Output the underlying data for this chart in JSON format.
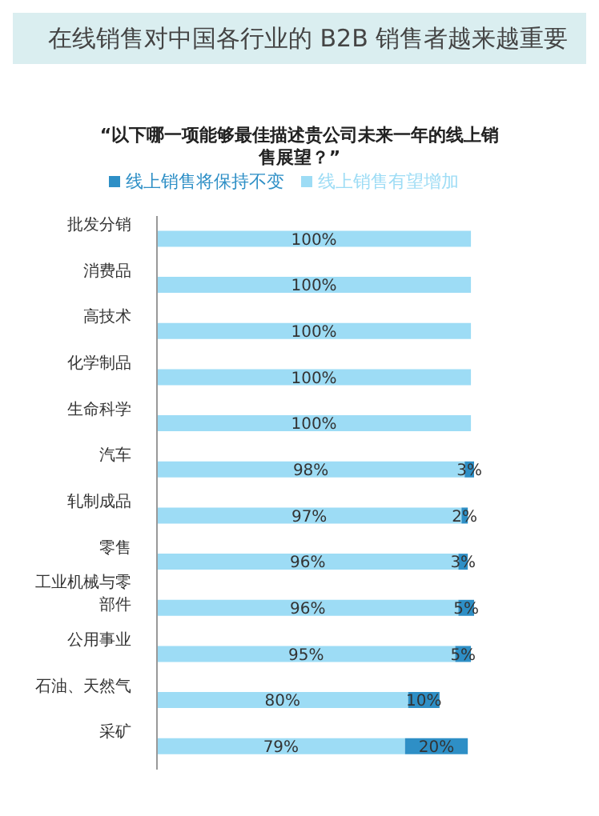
{
  "chart_data": {
    "type": "bar",
    "orientation": "horizontal",
    "stacked": true,
    "title": "在线销售对中国各行业的 B2B 销售者越来越重要",
    "subtitle": "“以下哪一项能够最佳描述贵公司未来一年的线上销售展望？”",
    "legend": "top",
    "grid": false,
    "tick_labels": "y",
    "categories": [
      "批发分销",
      "消费品",
      "高技术",
      "化学制品",
      "生命科学",
      "汽车",
      "轧制成品",
      "零售",
      "工业机械与零部件",
      "公用事业",
      "石油、天然气",
      "采矿"
    ],
    "series": [
      {
        "name": "线上销售有望增加",
        "color": "#9ddcf5",
        "values": [
          100,
          100,
          100,
          100,
          100,
          98,
          97,
          96,
          96,
          95,
          80,
          79
        ],
        "value_labels": [
          "100%",
          "100%",
          "100%",
          "100%",
          "100%",
          "98%",
          "97%",
          "96%",
          "96%",
          "95%",
          "80%",
          "79%"
        ]
      },
      {
        "name": "线上销售将保持不变",
        "color": "#2e8fc6",
        "values": [
          null,
          null,
          null,
          null,
          null,
          3,
          2,
          3,
          5,
          5,
          10,
          20
        ],
        "value_labels": [
          null,
          null,
          null,
          null,
          null,
          "3%",
          "2%",
          "3%",
          "5%",
          "5%",
          "10%",
          "20%"
        ]
      }
    ]
  }
}
